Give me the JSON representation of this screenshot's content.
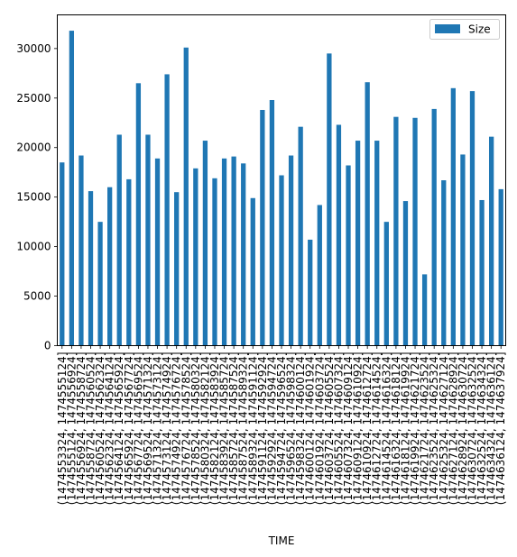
{
  "chart_data": {
    "type": "bar",
    "xlabel": "TIME",
    "ylabel": "",
    "ylim": [
      0,
      33400
    ],
    "yticks": [
      0,
      5000,
      10000,
      15000,
      20000,
      25000,
      30000
    ],
    "grid": false,
    "legend_position": "top-right",
    "bar_color": "#1f77b4",
    "categories": [
      "(1474553324, 1474555124]",
      "(1474555124, 1474556924]",
      "(1474556924, 1474558724]",
      "(1474558724, 1474560524]",
      "(1474560524, 1474562324]",
      "(1474562324, 1474564124]",
      "(1474564124, 1474565924]",
      "(1474565924, 1474567724]",
      "(1474567724, 1474569524]",
      "(1474569524, 1474571324]",
      "(1474571324, 1474573124]",
      "(1474573124, 1474574924]",
      "(1474574924, 1474576724]",
      "(1474576724, 1474578524]",
      "(1474578524, 1474580324]",
      "(1474580324, 1474582124]",
      "(1474582124, 1474583924]",
      "(1474583924, 1474585724]",
      "(1474585724, 1474587524]",
      "(1474587524, 1474589324]",
      "(1474589324, 1474591124]",
      "(1474591124, 1474592924]",
      "(1474592924, 1474594724]",
      "(1474594724, 1474596524]",
      "(1474596524, 1474598324]",
      "(1474598324, 1474600124]",
      "(1474600124, 1474601924]",
      "(1474601924, 1474603724]",
      "(1474603724, 1474605524]",
      "(1474605524, 1474607324]",
      "(1474607324, 1474609124]",
      "(1474609124, 1474610924]",
      "(1474610924, 1474612724]",
      "(1474612724, 1474614524]",
      "(1474614524, 1474616324]",
      "(1474616324, 1474618124]",
      "(1474618124, 1474619924]",
      "(1474619924, 1474621724]",
      "(1474621724, 1474623524]",
      "(1474623524, 1474625324]",
      "(1474625324, 1474627124]",
      "(1474627124, 1474628924]",
      "(1474628924, 1474630724]",
      "(1474630724, 1474632524]",
      "(1474632524, 1474634324]",
      "(1474634324, 1474636124]",
      "(1474636124, 1474637924]"
    ],
    "series": [
      {
        "name": "Size",
        "values": [
          18500,
          31800,
          19200,
          15600,
          12500,
          16000,
          21300,
          16800,
          26500,
          21300,
          18900,
          27400,
          15500,
          30100,
          17900,
          20700,
          16900,
          18900,
          19100,
          18400,
          14900,
          23800,
          24800,
          17200,
          19200,
          22100,
          10700,
          14200,
          29500,
          22300,
          18200,
          20700,
          26600,
          20700,
          12500,
          23100,
          14600,
          23000,
          7200,
          23900,
          16700,
          26000,
          19300,
          25700,
          14700,
          21100,
          15800
        ]
      }
    ]
  }
}
